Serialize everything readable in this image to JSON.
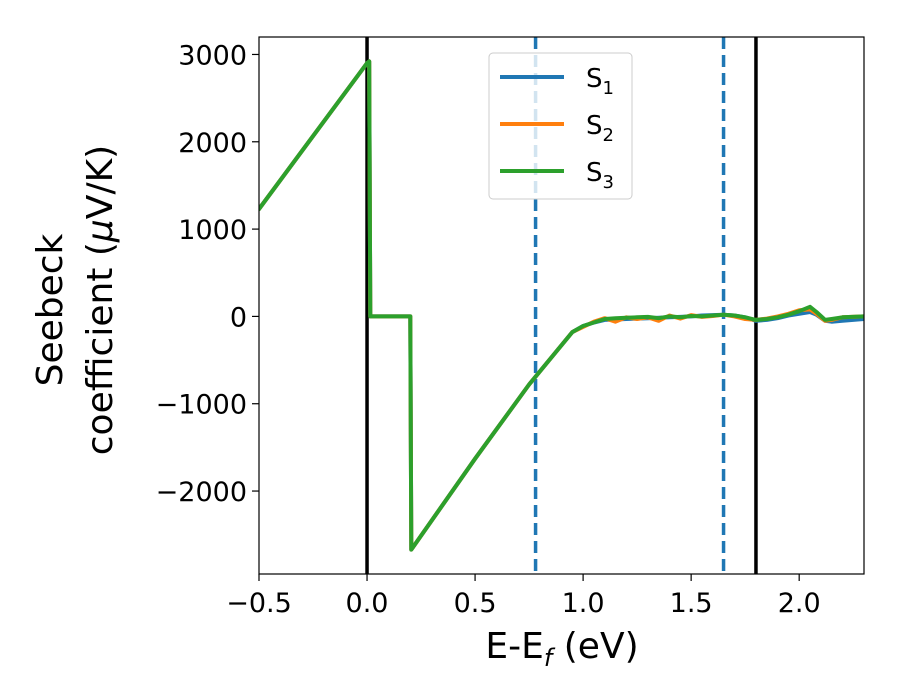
{
  "chart_data": {
    "type": "line",
    "xlabel": {
      "main": "E-E",
      "sub": "f",
      "tail": " (eV)"
    },
    "ylabel": {
      "line1": "Seebeck",
      "line2_prefix": "coefficient  (",
      "mu": "μ",
      "line2_suffix": "V/K)"
    },
    "xlim": [
      -0.5,
      2.3
    ],
    "ylim": [
      -2950,
      3200
    ],
    "x_ticks": [
      -0.5,
      0.0,
      0.5,
      1.0,
      1.5,
      2.0
    ],
    "x_tick_labels": [
      "−0.5",
      "0.0",
      "0.5",
      "1.0",
      "1.5",
      "2.0"
    ],
    "y_ticks": [
      -2000,
      -1000,
      0,
      1000,
      2000,
      3000
    ],
    "y_tick_labels": [
      "−2000",
      "−1000",
      "0",
      "1000",
      "2000",
      "3000"
    ],
    "grid": false,
    "legend_position": "top-center",
    "vlines": [
      {
        "x": 0.0,
        "style": "solid",
        "color": "#000000"
      },
      {
        "x": 1.8,
        "style": "solid",
        "color": "#000000"
      },
      {
        "x": 0.78,
        "style": "dashed",
        "color": "#1f77b4"
      },
      {
        "x": 1.65,
        "style": "dashed",
        "color": "#1f77b4"
      }
    ],
    "series": [
      {
        "name": "S",
        "sub": "1",
        "color": "#1f77b4",
        "x": [
          -0.5,
          0.0,
          0.01,
          0.015,
          0.2,
          0.205,
          0.5,
          0.75,
          0.95,
          1.0,
          1.05,
          1.1,
          1.15,
          1.2,
          1.25,
          1.3,
          1.35,
          1.4,
          1.45,
          1.5,
          1.55,
          1.6,
          1.65,
          1.7,
          1.75,
          1.8,
          1.85,
          1.9,
          1.95,
          2.0,
          2.05,
          2.08,
          2.12,
          2.15,
          2.2,
          2.3
        ],
        "y": [
          1230,
          2900,
          2920,
          0,
          0,
          -2670,
          -1630,
          -780,
          -180,
          -110,
          -70,
          -40,
          -35,
          -30,
          -25,
          -20,
          -15,
          -10,
          -5,
          0,
          10,
          15,
          20,
          10,
          -10,
          -50,
          -40,
          -20,
          10,
          30,
          50,
          20,
          -50,
          -60,
          -50,
          -30
        ]
      },
      {
        "name": "S",
        "sub": "2",
        "color": "#ff7f0e",
        "x": [
          -0.5,
          0.0,
          0.01,
          0.015,
          0.2,
          0.205,
          0.5,
          0.75,
          0.95,
          1.0,
          1.05,
          1.1,
          1.15,
          1.2,
          1.25,
          1.3,
          1.35,
          1.4,
          1.45,
          1.5,
          1.55,
          1.6,
          1.65,
          1.7,
          1.75,
          1.8,
          1.85,
          1.9,
          1.95,
          2.0,
          2.05,
          2.08,
          2.12,
          2.15,
          2.2,
          2.3
        ],
        "y": [
          1230,
          2900,
          2920,
          0,
          0,
          -2670,
          -1630,
          -780,
          -180,
          -120,
          -60,
          -20,
          -60,
          -10,
          -30,
          -10,
          -50,
          10,
          -25,
          15,
          -5,
          5,
          20,
          0,
          -30,
          -40,
          -25,
          0,
          30,
          70,
          80,
          30,
          -50,
          -40,
          -10,
          0
        ]
      },
      {
        "name": "S",
        "sub": "3",
        "color": "#2ca02c",
        "x": [
          -0.5,
          0.0,
          0.01,
          0.015,
          0.2,
          0.205,
          0.5,
          0.75,
          0.95,
          1.0,
          1.05,
          1.1,
          1.15,
          1.2,
          1.25,
          1.3,
          1.35,
          1.4,
          1.45,
          1.5,
          1.55,
          1.6,
          1.65,
          1.7,
          1.75,
          1.8,
          1.85,
          1.9,
          1.95,
          2.0,
          2.05,
          2.08,
          2.12,
          2.15,
          2.2,
          2.3
        ],
        "y": [
          1230,
          2900,
          2920,
          0,
          0,
          -2670,
          -1630,
          -780,
          -180,
          -110,
          -70,
          -30,
          -20,
          -15,
          -10,
          -5,
          -20,
          0,
          -10,
          5,
          0,
          10,
          20,
          10,
          -10,
          -40,
          -30,
          -10,
          20,
          60,
          110,
          50,
          -40,
          -30,
          -10,
          0
        ]
      }
    ]
  }
}
